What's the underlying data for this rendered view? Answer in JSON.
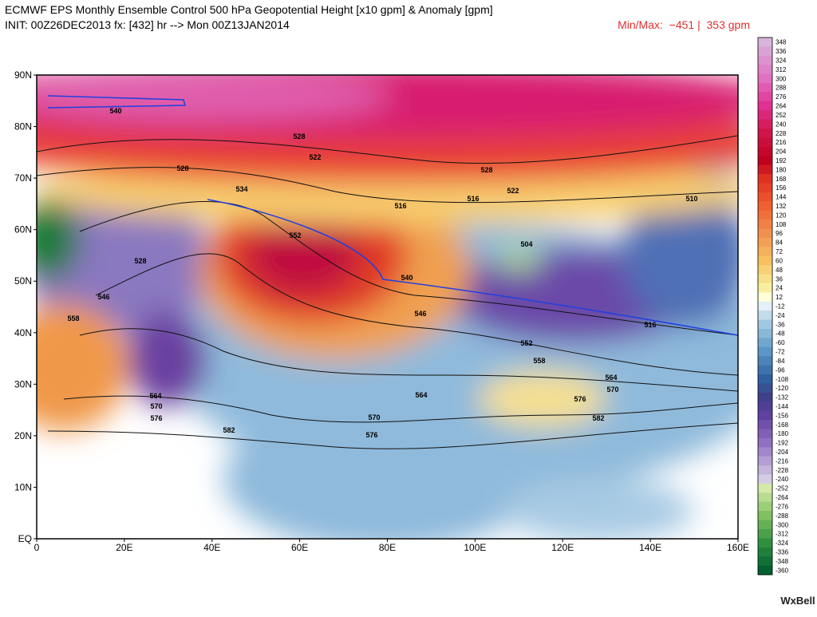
{
  "header": {
    "title": "ECMWF EPS Monthly Ensemble Control 500 hPa Geopotential Height [x10 gpm] & Anomaly [gpm]",
    "init": "INIT: 00Z26DEC2013 fx: [432] hr --> Mon 00Z13JAN2014",
    "minmax": "Min/Max:  −451 |  353 gpm"
  },
  "map": {
    "lat_labels": [
      "90N",
      "80N",
      "70N",
      "60N",
      "50N",
      "40N",
      "30N",
      "20N",
      "10N",
      "EQ"
    ],
    "lon_labels": [
      "0",
      "20E",
      "40E",
      "60E",
      "80E",
      "100E",
      "120E",
      "140E",
      "160E"
    ],
    "contour_labels": [
      "540",
      "528",
      "528",
      "522",
      "528",
      "522",
      "516",
      "516",
      "510",
      "534",
      "552",
      "504",
      "540",
      "546",
      "528",
      "546",
      "558",
      "552",
      "558",
      "564",
      "570",
      "576",
      "582",
      "564",
      "570",
      "576",
      "564",
      "570",
      "576",
      "582",
      "516"
    ]
  },
  "colorbar": {
    "labels": [
      348,
      336,
      324,
      312,
      300,
      288,
      276,
      264,
      252,
      240,
      228,
      216,
      204,
      192,
      180,
      168,
      156,
      144,
      132,
      120,
      108,
      96,
      84,
      72,
      60,
      48,
      36,
      24,
      12,
      -12,
      -24,
      -36,
      -48,
      -60,
      -72,
      -84,
      -96,
      -108,
      -120,
      -132,
      -144,
      -156,
      -168,
      -180,
      -192,
      -204,
      -216,
      -228,
      -240,
      -252,
      -264,
      -276,
      -288,
      -300,
      -312,
      -324,
      -336,
      -348,
      -360
    ]
  },
  "watermark": "WxBell"
}
